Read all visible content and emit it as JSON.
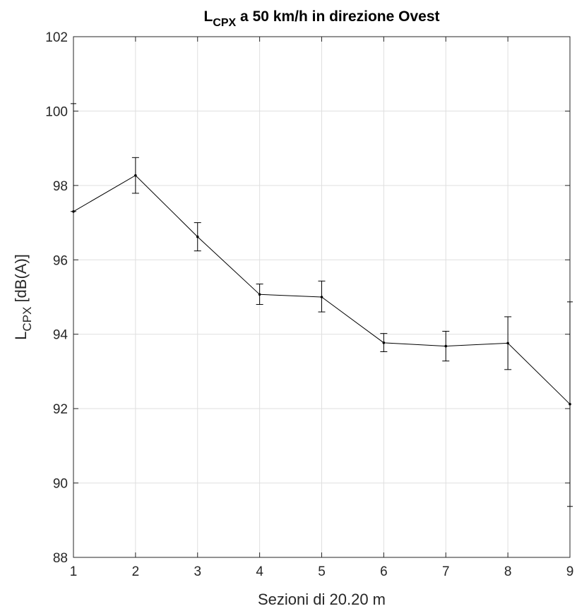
{
  "chart_data": {
    "type": "line",
    "title": {
      "main": "L",
      "sub": "CPX",
      "rest": " a 50 km/h in direzione Ovest"
    },
    "xlabel": "Sezioni di 20.20 m",
    "ylabel": {
      "main": "L",
      "sub": "CPX",
      "rest": " [dB(A)]"
    },
    "xlim": [
      1,
      9
    ],
    "ylim": [
      88,
      102
    ],
    "x_ticks": [
      1,
      2,
      3,
      4,
      5,
      6,
      7,
      8,
      9
    ],
    "y_ticks": [
      88,
      90,
      92,
      94,
      96,
      98,
      100,
      102
    ],
    "grid": true,
    "colors": {
      "line": "#000000",
      "grid": "#dfdfdf",
      "axis": "#262626"
    },
    "series": [
      {
        "x": [
          1,
          2,
          3,
          4,
          5,
          6,
          7,
          8,
          9
        ],
        "y": [
          97.3,
          98.27,
          96.62,
          95.07,
          95.0,
          93.77,
          93.68,
          93.76,
          92.12
        ],
        "err_low": [
          97.3,
          97.79,
          96.24,
          94.8,
          94.6,
          93.53,
          93.28,
          93.05,
          89.37
        ],
        "err_high": [
          100.2,
          98.75,
          97.0,
          95.35,
          95.43,
          94.02,
          94.08,
          94.47,
          94.87
        ]
      }
    ]
  }
}
